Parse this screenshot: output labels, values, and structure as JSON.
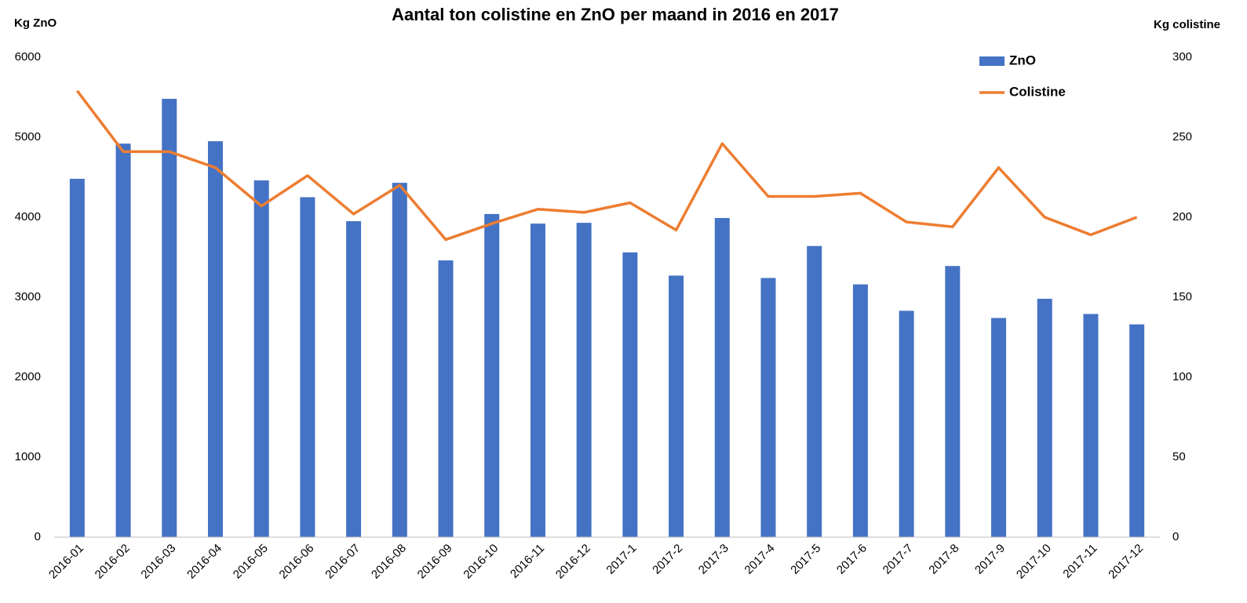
{
  "chart_data": {
    "type": "bar_line",
    "title": "Aantal ton colistine en ZnO per maand in 2016 en 2017",
    "y_label": "Kg ZnO",
    "y2_label": "Kg colistine",
    "categories": [
      "2016-01",
      "2016-02",
      "2016-03",
      "2016-04",
      "2016-05",
      "2016-06",
      "2016-07",
      "2016-08",
      "2016-09",
      "2016-10",
      "2016-11",
      "2016-12",
      "2017-1",
      "2017-2",
      "2017-3",
      "2017-4",
      "2017-5",
      "2017-6",
      "2017-7",
      "2017-8",
      "2017-9",
      "2017-10",
      "2017-11",
      "2017-12"
    ],
    "series": [
      {
        "name": "ZnO",
        "color": "#4472c4",
        "type": "bar",
        "values": [
          4480,
          4920,
          5480,
          4950,
          4460,
          4250,
          3950,
          4430,
          3460,
          4040,
          3920,
          3930,
          3560,
          3270,
          3990,
          3240,
          3640,
          3160,
          2830,
          3390,
          2740,
          2980,
          2790,
          2660
        ]
      },
      {
        "name": "Colistine",
        "color": "#ed7d31",
        "type": "line",
        "axis": "y2",
        "values": [
          279,
          241,
          241,
          231,
          207,
          226,
          202,
          220,
          186,
          196,
          205,
          203,
          209,
          192,
          246,
          213,
          213,
          215,
          197,
          194,
          231,
          200,
          189,
          200
        ]
      }
    ],
    "ylim": [
      0,
      6000
    ],
    "yticks": [
      0,
      1000,
      2000,
      3000,
      4000,
      5000,
      6000
    ],
    "y2lim": [
      0,
      300
    ],
    "y2ticks": [
      0,
      50,
      100,
      150,
      200,
      250,
      300
    ],
    "legend": "top-right"
  }
}
